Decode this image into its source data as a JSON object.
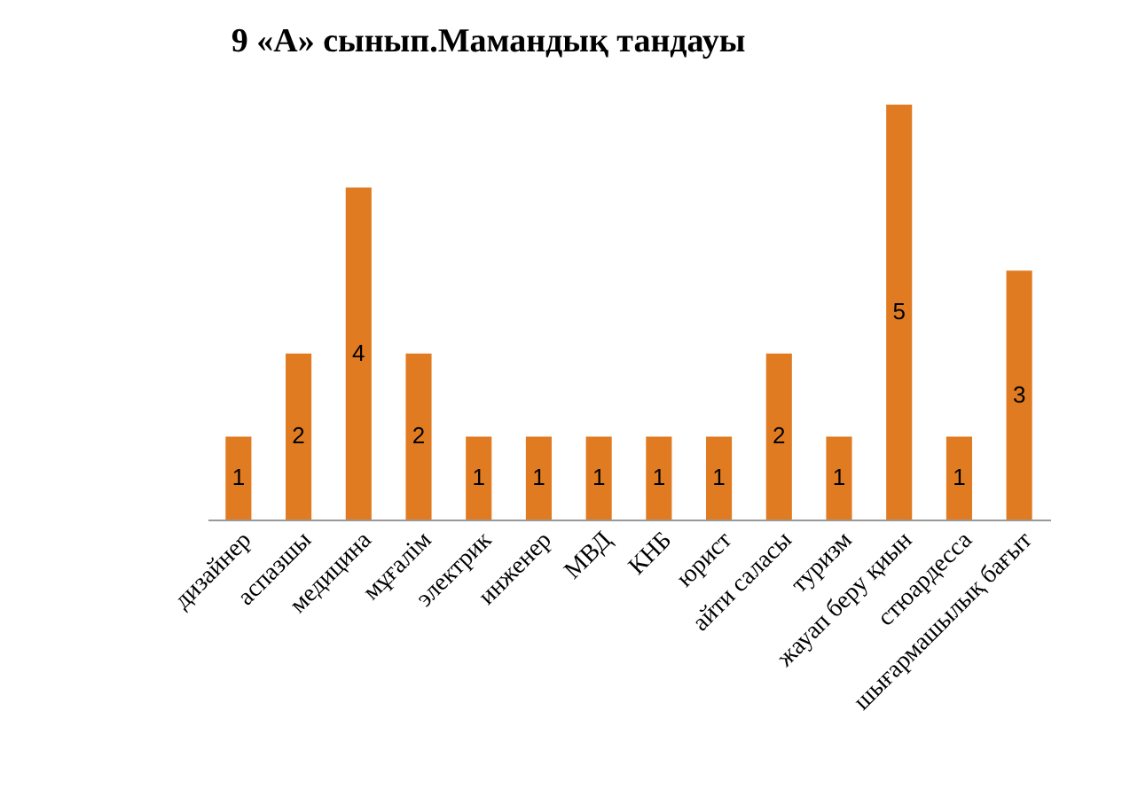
{
  "chart_data": {
    "type": "bar",
    "title": "9 «А» сынып.Мамандық тандауы",
    "categories": [
      "дизайнер",
      "аспазшы",
      "медицина",
      "мұғалім",
      "электрик",
      "инженер",
      "МВД",
      "КНБ",
      "юрист",
      "айти саласы",
      "туризм",
      "жауап беру қиын",
      "стюардесса",
      "шығармашылық бағыт"
    ],
    "values": [
      1,
      2,
      4,
      2,
      1,
      1,
      1,
      1,
      1,
      2,
      1,
      5,
      1,
      3
    ],
    "color": "#e07b22",
    "ylim": [
      0,
      5
    ],
    "data_labels": true,
    "tick_labels": "x"
  }
}
